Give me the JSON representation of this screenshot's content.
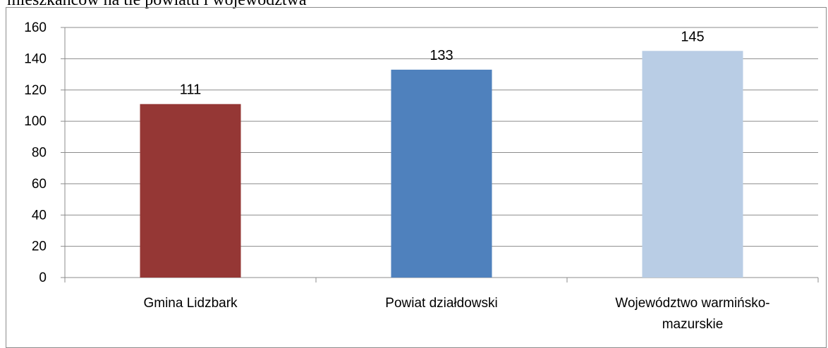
{
  "caption": "mieszkańców na tle powiatu i województwa",
  "chart_data": {
    "type": "bar",
    "title": "",
    "xlabel": "",
    "ylabel": "",
    "categories": [
      [
        "Gmina Lidzbark"
      ],
      [
        "Powiat działdowski"
      ],
      [
        "Województwo warmińsko-",
        "mazurskie"
      ]
    ],
    "values": [
      111,
      133,
      145
    ],
    "data_labels": [
      "111",
      "133",
      "145"
    ],
    "colors": [
      "#953735",
      "#4f81bd",
      "#b9cde5"
    ],
    "ylim": [
      0,
      160
    ],
    "yticks": [
      0,
      20,
      40,
      60,
      80,
      100,
      120,
      140,
      160
    ],
    "grid": true,
    "legend": "none"
  }
}
